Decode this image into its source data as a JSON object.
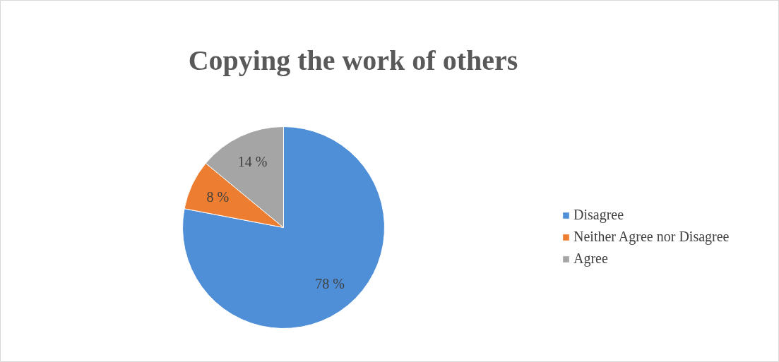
{
  "chart_data": {
    "type": "pie",
    "title": "Copying the work of others",
    "categories": [
      "Disagree",
      "Neither Agree nor Disagree",
      "Agree"
    ],
    "values": [
      78,
      8,
      14
    ],
    "value_labels": [
      "78 %",
      "8 %",
      "14 %"
    ],
    "colors": [
      "#4f8fd8",
      "#ed7d31",
      "#a5a5a5"
    ],
    "legend": "right"
  }
}
